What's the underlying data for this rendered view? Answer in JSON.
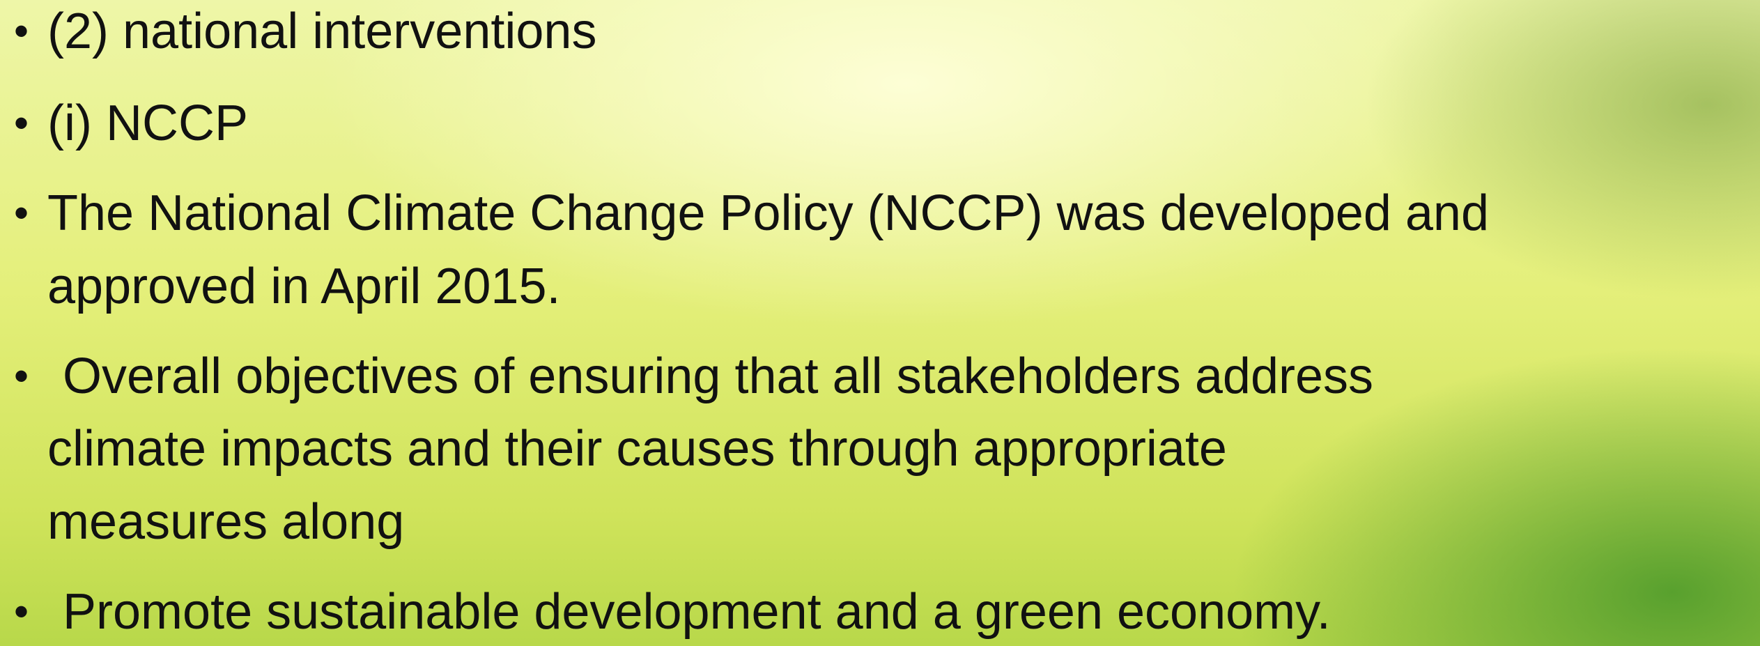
{
  "bullets": [
    {
      "lines": [
        "(2) national interventions"
      ]
    },
    {
      "lines": [
        "(i) NCCP"
      ]
    },
    {
      "lines": [
        "The National Climate Change Policy (NCCP) was developed and",
        "approved in April 2015."
      ]
    },
    {
      "lines": [
        "Overall objectives of ensuring that all stakeholders address",
        "climate impacts and their causes through appropriate",
        "measures along"
      ]
    },
    {
      "lines": [
        "Promote sustainable development and a green economy."
      ]
    }
  ]
}
